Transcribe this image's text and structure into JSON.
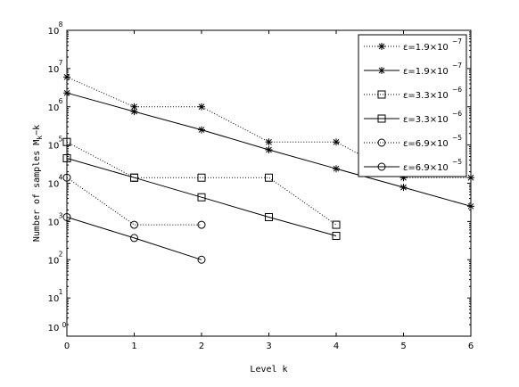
{
  "chart_data": {
    "type": "line",
    "title": "",
    "xlabel": "Level k",
    "ylabel_prefix": "Number of samples M",
    "ylabel_sub": "k",
    "ylabel_suffix": "−k",
    "yscale": "log",
    "xlim": [
      0,
      6
    ],
    "ylim": [
      1,
      100000000
    ],
    "xticks": [
      0,
      1,
      2,
      3,
      4,
      5,
      6
    ],
    "xtick_labels": [
      "0",
      "1",
      "2",
      "3",
      "4",
      "5",
      "6"
    ],
    "yticks": [
      1,
      10,
      100,
      1000,
      10000,
      100000,
      1000000,
      10000000,
      100000000
    ],
    "ytick_base": "10",
    "ytick_exponents": [
      "1",
      "2",
      "3",
      "4",
      "5",
      "6",
      "7",
      "8"
    ],
    "ytick_bottom_label": "10",
    "ytick_bottom_exponent": "0",
    "grid": false,
    "legend_position": "top-right",
    "series": [
      {
        "name": "ε=1.9×10⁻⁷",
        "legend_base": "ε=1.9×10",
        "legend_exp": "−7",
        "marker": "star",
        "linestyle": "dotted",
        "x": [
          0,
          1,
          2,
          3,
          4,
          5,
          6
        ],
        "y": [
          6000000,
          1000000,
          1000000,
          120000,
          120000,
          14000,
          14000
        ]
      },
      {
        "name": "ε=1.9×10⁻⁷",
        "legend_base": "ε=1.9×10",
        "legend_exp": "−7",
        "marker": "star",
        "linestyle": "solid",
        "x": [
          0,
          1,
          2,
          3,
          4,
          5,
          6
        ],
        "y": [
          2300000,
          750000,
          250000,
          75000,
          24000,
          7800,
          2500
        ]
      },
      {
        "name": "ε=3.3×10⁻⁶",
        "legend_base": "ε=3.3×10",
        "legend_exp": "−6",
        "marker": "square",
        "linestyle": "dotted",
        "x": [
          0,
          1,
          2,
          3,
          4
        ],
        "y": [
          120000,
          14000,
          14000,
          14000,
          820
        ]
      },
      {
        "name": "ε=3.3×10⁻⁶",
        "legend_base": "ε=3.3×10",
        "legend_exp": "−6",
        "marker": "square",
        "linestyle": "solid",
        "x": [
          0,
          1,
          2,
          3,
          4
        ],
        "y": [
          45000,
          14000,
          4300,
          1300,
          420
        ]
      },
      {
        "name": "ε=6.9×10⁻⁵",
        "legend_base": "ε=6.9×10",
        "legend_exp": "−5",
        "marker": "circle",
        "linestyle": "dotted",
        "x": [
          0,
          1,
          2
        ],
        "y": [
          14000,
          820,
          820
        ]
      },
      {
        "name": "ε=6.9×10⁻⁵",
        "legend_base": "ε=6.9×10",
        "legend_exp": "−5",
        "marker": "circle",
        "linestyle": "solid",
        "x": [
          0,
          1,
          2
        ],
        "y": [
          1300,
          370,
          100
        ]
      }
    ]
  }
}
